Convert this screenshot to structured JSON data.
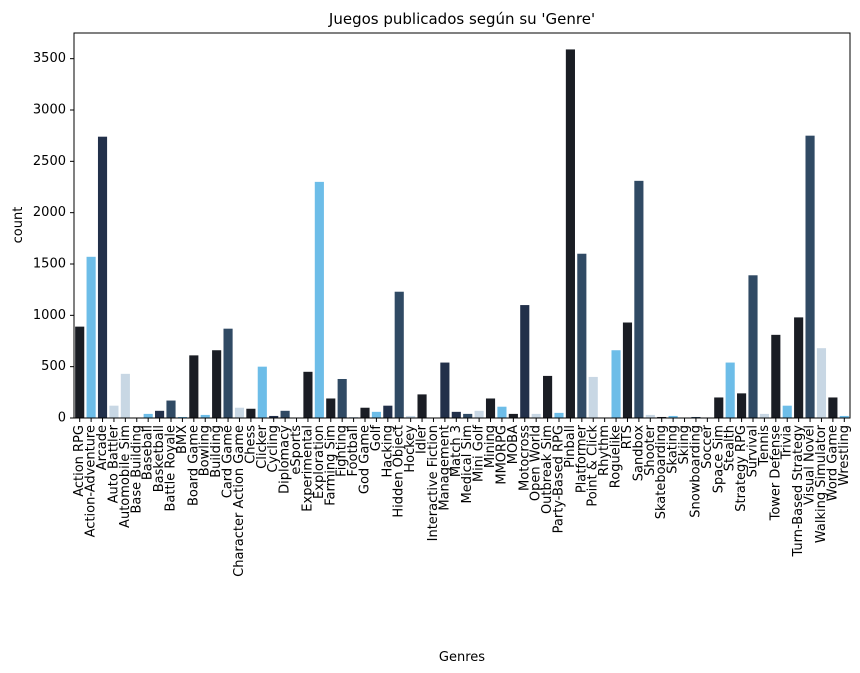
{
  "chart_data": {
    "type": "bar",
    "title": "Juegos publicados según su 'Genre'",
    "xlabel": "Genres",
    "ylabel": "count",
    "ylim": [
      0,
      3750
    ],
    "yticks": [
      0,
      500,
      1000,
      1500,
      2000,
      2500,
      3000,
      3500
    ],
    "grid": false,
    "palette": [
      "#1a1d24",
      "#6dbde8",
      "#22304a",
      "#c8d7e4",
      "#304a64"
    ],
    "categories": [
      "Action RPG",
      "Action-Adventure",
      "Arcade",
      "Auto Battler",
      "Automobile Sim",
      "Base Building",
      "Baseball",
      "Basketball",
      "Battle Royale",
      "BMX",
      "Board Game",
      "Bowling",
      "Building",
      "Card Game",
      "Character Action Game",
      "Chess",
      "Clicker",
      "Cycling",
      "Diplomacy",
      "eSports",
      "Experimental",
      "Exploration",
      "Farming Sim",
      "Fighting",
      "Football",
      "God Game",
      "Golf",
      "Hacking",
      "Hidden Object",
      "Hockey",
      "Idler",
      "Interactive Fiction",
      "Management",
      "Match 3",
      "Medical Sim",
      "Mini Golf",
      "Mining",
      "MMORPG",
      "MOBA",
      "Motocross",
      "Open World",
      "Outbreak Sim",
      "Party-Based RPG",
      "Pinball",
      "Platformer",
      "Point & Click",
      "Rhythm",
      "Roguelike",
      "RTS",
      "Sandbox",
      "Shooter",
      "Skateboarding",
      "Skating",
      "Skiing",
      "Snowboarding",
      "Soccer",
      "Space Sim",
      "Stealth",
      "Strategy RPG",
      "Survival",
      "Tennis",
      "Tower Defense",
      "Trivia",
      "Turn-Based Strategy",
      "Visual Novel",
      "Walking Simulator",
      "Word Game",
      "Wrestling"
    ],
    "values": [
      890,
      1570,
      2740,
      120,
      430,
      5,
      40,
      70,
      170,
      10,
      610,
      30,
      660,
      870,
      100,
      90,
      500,
      20,
      70,
      5,
      450,
      2300,
      190,
      380,
      10,
      100,
      60,
      120,
      1230,
      20,
      230,
      5,
      540,
      60,
      40,
      70,
      190,
      110,
      40,
      1100,
      40,
      410,
      50,
      3590,
      1600,
      400,
      5,
      660,
      930,
      2310,
      30,
      10,
      20,
      5,
      10,
      5,
      200,
      540,
      240,
      1390,
      40,
      810,
      120,
      980,
      2750,
      680,
      200,
      20
    ],
    "bar_color_index": [
      0,
      1,
      2,
      3,
      3,
      4,
      1,
      2,
      4,
      1,
      0,
      1,
      0,
      4,
      3,
      0,
      1,
      2,
      4,
      1,
      0,
      1,
      0,
      4,
      3,
      0,
      1,
      2,
      4,
      3,
      0,
      3,
      2,
      2,
      4,
      3,
      0,
      1,
      0,
      2,
      3,
      0,
      1,
      0,
      4,
      3,
      0,
      1,
      0,
      4,
      3,
      0,
      1,
      2,
      4,
      1,
      0,
      1,
      0,
      4,
      3,
      0,
      1,
      0,
      4,
      3,
      0,
      1
    ]
  }
}
